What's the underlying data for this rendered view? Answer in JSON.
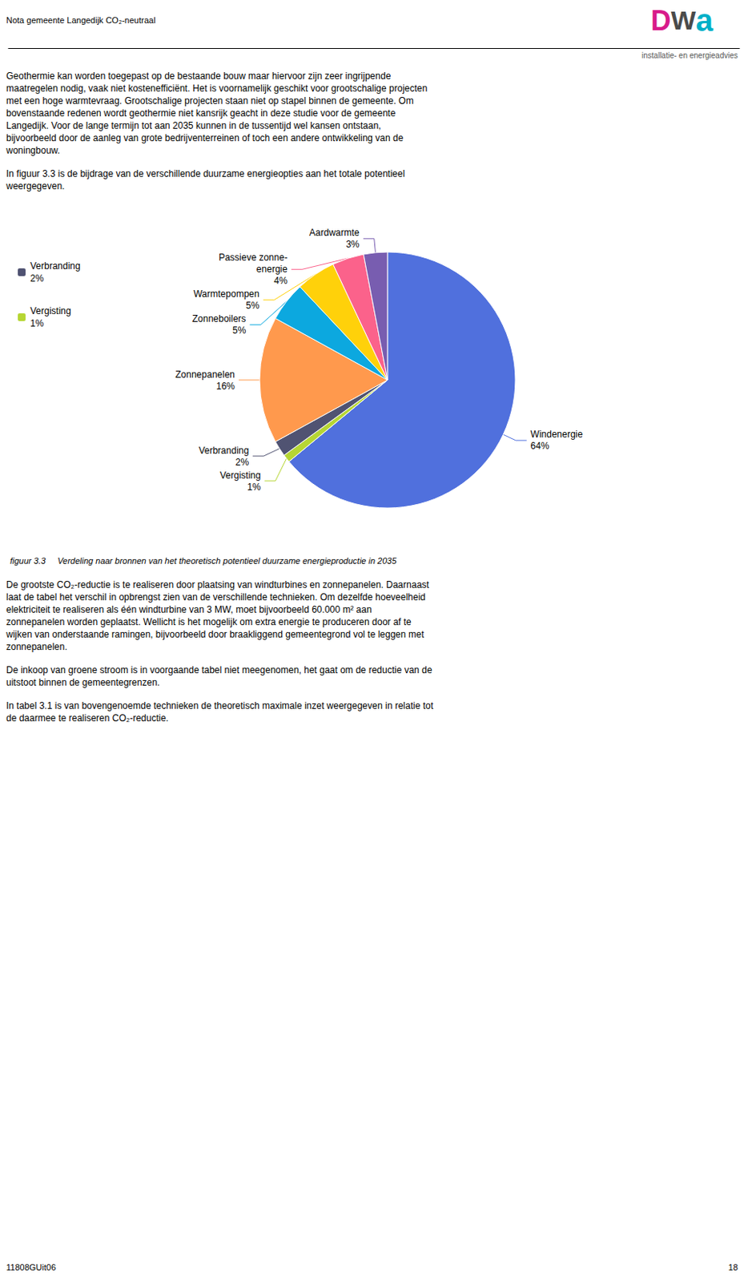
{
  "chart_data": {
    "type": "pie",
    "title": "figuur 3.3     Verdeling naar bronnen van het theoretisch potentieel duurzame energieproductie in 2035",
    "categories": [
      "Windenergie",
      "Vergisting",
      "Verbranding",
      "Zonnepanelen",
      "Zonneboilers",
      "Warmtepompen",
      "Passieve zonne-\nenergie",
      "Aardwarmte"
    ],
    "values": [
      64,
      1,
      2,
      16,
      5,
      5,
      4,
      3
    ],
    "value_labels": [
      "64%",
      "1%",
      "2%",
      "16%",
      "5%",
      "5%",
      "4%",
      "3%"
    ],
    "data_labels": true,
    "legend": "left",
    "legend_entries": [
      "Verbranding",
      "Vergisting"
    ],
    "annotations": {
      "header_left": "Nota gemeente Langedijk CO₂-neutraal",
      "logo": "DWa",
      "header_right": "installatie- en energieadvies",
      "body_before": [
        [
          "Geothermie kan worden toegepast op de bestaande bouw maar hiervoor zijn zeer ingrijpende",
          "maatregelen nodig, vaak niet kostenefficiënt. Het is voornamelijk geschikt voor grootschalige projecten",
          "met een hoge warmtevraag. Grootschalige projecten staan niet op stapel binnen de gemeente. Om",
          "bovenstaande redenen wordt geothermie niet kansrijk geacht in deze studie voor de gemeente",
          "Langedijk. Voor de lange termijn tot aan 2035 kunnen in de tussentijd wel kansen ontstaan,",
          "bijvoorbeeld door de aanleg van grote bedrijventerreinen of toch een andere ontwikkeling van de",
          "woningbouw."
        ],
        [
          "In figuur 3.3 is de bijdrage van de verschillende duurzame energieopties aan het totale potentieel",
          "weergegeven."
        ]
      ],
      "body_after": [
        [
          "De grootste CO₂-reductie is te realiseren door plaatsing van windturbines en zonnepanelen. Daarnaast",
          "laat de tabel het verschil in opbrengst zien van de verschillende technieken. Om dezelfde hoeveelheid",
          "elektriciteit te realiseren als één windturbine van 3 MW, moet bijvoorbeeld 60.000 m² aan",
          "zonnepanelen worden geplaatst. Wellicht is het mogelijk om extra energie te produceren door af te",
          "wijken van onderstaande ramingen, bijvoorbeeld door braakliggend gemeentegrond vol te leggen met",
          "zonnepanelen."
        ],
        [
          "De inkoop van groene stroom is in voorgaande tabel niet meegenomen, het gaat om de reductie van de",
          "uitstoot binnen de gemeentegrenzen."
        ],
        [
          "In tabel 3.1 is van bovengenoemde technieken de theoretisch maximale inzet weergegeven in relatie tot",
          "de daarmee te realiseren CO₂-reductie."
        ]
      ],
      "footer_left": "11808GUit06",
      "footer_right": "18"
    }
  }
}
